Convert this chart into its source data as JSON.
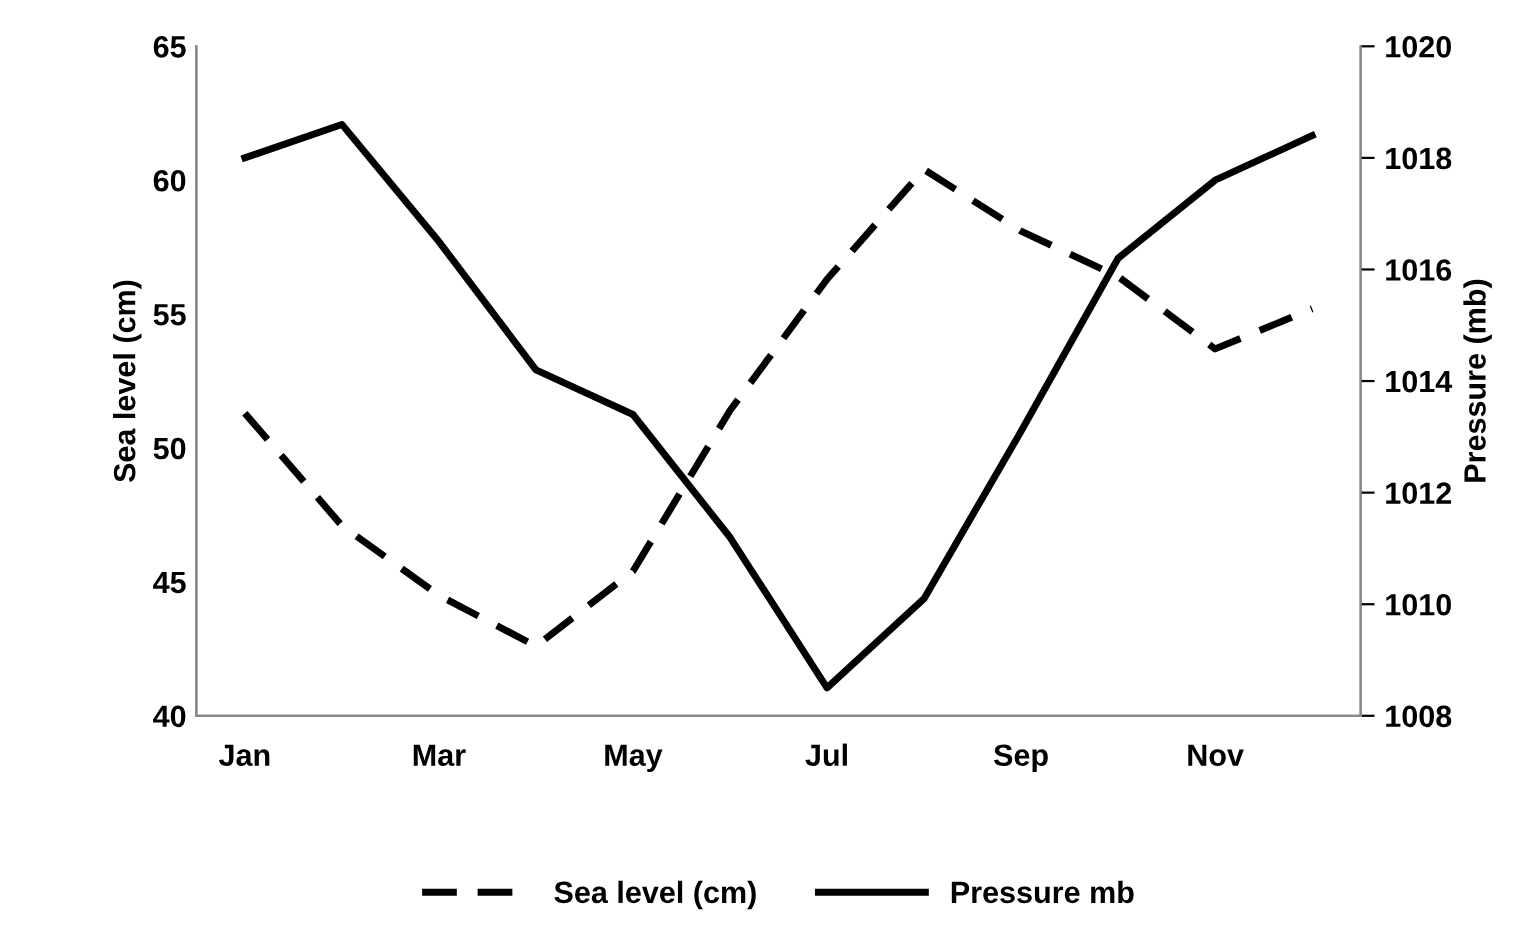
{
  "chart_data": {
    "type": "line",
    "categories": [
      "Jan",
      null,
      "Mar",
      null,
      "May",
      null,
      "Jul",
      null,
      "Sep",
      null,
      "Nov",
      null
    ],
    "ylabel": "Sea level (cm)",
    "y2label": "Pressure (mb)",
    "ylim": [
      40,
      65
    ],
    "yticks": [
      40,
      45,
      50,
      55,
      60,
      65
    ],
    "y2lim": [
      1008,
      1020
    ],
    "y2ticks": [
      1008,
      1010,
      1012,
      1014,
      1016,
      1018,
      1020
    ],
    "legend": "bottom",
    "grid": false,
    "series": [
      {
        "name": "Sea level (cm)",
        "color": "#000000",
        "line_style": "dashed",
        "values": [
          51.3,
          47.1,
          44.5,
          42.6,
          45.4,
          51.4,
          56.3,
          60.4,
          58.1,
          56.4,
          53.7,
          55.2
        ]
      },
      {
        "name": "Pressure mb",
        "color": "#000000",
        "line_style": "solid",
        "axis": "y2",
        "values": [
          1018.0,
          1018.6,
          1016.5,
          1014.2,
          1013.4,
          1011.2,
          1008.5,
          1010.1,
          1013.1,
          1016.2,
          1017.6,
          1018.4
        ]
      }
    ]
  }
}
